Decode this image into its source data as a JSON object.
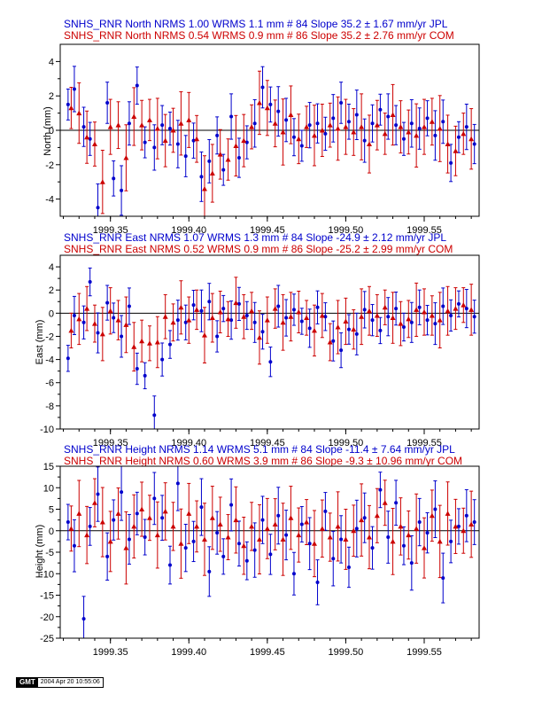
{
  "colors": {
    "jpl": "#0000cc",
    "com": "#cc0000",
    "frame": "#000000"
  },
  "stamp": {
    "logo": "GMT",
    "date": "2004 Apr 20 10:55:06"
  },
  "chart_data": [
    {
      "type": "scatter",
      "title": "",
      "xlabel": "",
      "ylabel": "North (mm)",
      "xlim": [
        1999.318,
        1999.585
      ],
      "ylim": [
        -5,
        5
      ],
      "xticks": [
        "1999.35",
        "1999.40",
        "1999.45",
        "1999.50",
        "1999.55"
      ],
      "xtick_values": [
        1999.35,
        1999.4,
        1999.45,
        1999.5,
        1999.55
      ],
      "yticks": [
        -4,
        -2,
        0,
        2,
        4
      ],
      "grid": false,
      "zero_line": true,
      "header": [
        "SNHS_RNR North NRMS 1.00 WRMS  1.1 mm # 84 Slope   35.2 ±  1.67 mm/yr JPL",
        "SNHS_RNR North NRMS 0.54 WRMS  0.9 mm # 86 Slope   35.2 ±  2.76 mm/yr COM"
      ],
      "series": [
        {
          "name": "JPL",
          "marker": "circle",
          "color": "#0000cc",
          "sigma": 1.2,
          "x": [
            1999.323,
            1999.327,
            1999.333,
            1999.337,
            1999.342,
            1999.348,
            1999.352,
            1999.357,
            1999.362,
            1999.367,
            1999.372,
            1999.378,
            1999.383,
            1999.388,
            1999.393,
            1999.398,
            1999.403,
            1999.408,
            1999.413,
            1999.418,
            1999.422,
            1999.427,
            1999.432,
            1999.437,
            1999.442,
            1999.447,
            1999.452,
            1999.457,
            1999.462,
            1999.467,
            1999.472,
            1999.477,
            1999.482,
            1999.487,
            1999.492,
            1999.497,
            1999.502,
            1999.507,
            1999.512,
            1999.517,
            1999.522,
            1999.527,
            1999.532,
            1999.537,
            1999.542,
            1999.547,
            1999.552,
            1999.557,
            1999.562,
            1999.567,
            1999.572,
            1999.577,
            1999.582
          ],
          "y": [
            1.5,
            2.4,
            0.2,
            -0.5,
            -4.5,
            1.6,
            -2.8,
            -3.5,
            0.4,
            2.6,
            -0.7,
            -1.0,
            0.3,
            0.1,
            -0.8,
            -1.5,
            -0.6,
            -2.7,
            -1.8,
            -0.3,
            -2.3,
            0.8,
            -1.6,
            -0.7,
            0.4,
            2.5,
            1.5,
            1.1,
            0.6,
            -0.4,
            -0.9,
            0.3,
            0.4,
            -0.2,
            0.7,
            1.6,
            0.5,
            0.9,
            -0.6,
            0.4,
            1.2,
            0.8,
            0.3,
            -0.5,
            0.4,
            0.1,
            0.7,
            -0.3,
            0.5,
            -1.9,
            -0.4,
            0.2,
            -0.8
          ]
        },
        {
          "name": "COM",
          "marker": "triangle",
          "color": "#cc0000",
          "sigma": 1.6,
          "x": [
            1999.325,
            1999.33,
            1999.335,
            1999.34,
            1999.345,
            1999.35,
            1999.355,
            1999.36,
            1999.365,
            1999.37,
            1999.375,
            1999.38,
            1999.385,
            1999.39,
            1999.395,
            1999.4,
            1999.405,
            1999.41,
            1999.415,
            1999.42,
            1999.425,
            1999.43,
            1999.435,
            1999.44,
            1999.445,
            1999.45,
            1999.455,
            1999.46,
            1999.465,
            1999.47,
            1999.475,
            1999.48,
            1999.485,
            1999.49,
            1999.495,
            1999.5,
            1999.505,
            1999.51,
            1999.515,
            1999.52,
            1999.525,
            1999.53,
            1999.535,
            1999.54,
            1999.545,
            1999.55,
            1999.555,
            1999.56,
            1999.565,
            1999.57,
            1999.575,
            1999.58
          ],
          "y": [
            1.3,
            1.0,
            -0.4,
            -0.8,
            -3.0,
            0.2,
            0.3,
            -1.6,
            0.8,
            0.3,
            0.6,
            0.1,
            -0.6,
            0.0,
            0.4,
            0.6,
            -0.5,
            -3.4,
            -2.5,
            -1.4,
            -1.7,
            -0.9,
            -0.6,
            0.2,
            1.6,
            1.3,
            0.4,
            -0.1,
            0.9,
            -0.5,
            0.2,
            -0.3,
            0.0,
            0.3,
            0.1,
            0.2,
            -0.1,
            0.2,
            -0.8,
            0.3,
            -0.2,
            0.9,
            0.2,
            -0.1,
            -0.3,
            0.2,
            0.5,
            0.1,
            -0.8,
            -1.2,
            -0.2,
            -0.5
          ]
        }
      ]
    },
    {
      "type": "scatter",
      "title": "",
      "xlabel": "",
      "ylabel": "East (mm)",
      "xlim": [
        1999.318,
        1999.585
      ],
      "ylim": [
        -10,
        5
      ],
      "xticks": [
        "1999.35",
        "1999.40",
        "1999.45",
        "1999.50",
        "1999.55"
      ],
      "xtick_values": [
        1999.35,
        1999.4,
        1999.45,
        1999.5,
        1999.55
      ],
      "yticks": [
        -10,
        -8,
        -6,
        -4,
        -2,
        0,
        2,
        4
      ],
      "grid": false,
      "zero_line": true,
      "header": [
        "SNHS_RNR East NRMS 1.07 WRMS  1.3 mm # 84 Slope  -24.9 ±  2.12 mm/yr JPL",
        "SNHS_RNR East NRMS 0.52 WRMS  0.9 mm # 86 Slope  -25.2 ±  2.99 mm/yr COM"
      ],
      "series": [
        {
          "name": "JPL",
          "marker": "circle",
          "color": "#0000cc",
          "sigma": 1.5,
          "x": [
            1999.323,
            1999.327,
            1999.333,
            1999.337,
            1999.342,
            1999.348,
            1999.352,
            1999.357,
            1999.362,
            1999.367,
            1999.372,
            1999.378,
            1999.383,
            1999.388,
            1999.393,
            1999.398,
            1999.403,
            1999.408,
            1999.413,
            1999.418,
            1999.422,
            1999.427,
            1999.432,
            1999.437,
            1999.442,
            1999.447,
            1999.452,
            1999.457,
            1999.462,
            1999.467,
            1999.472,
            1999.477,
            1999.482,
            1999.487,
            1999.492,
            1999.497,
            1999.502,
            1999.507,
            1999.512,
            1999.517,
            1999.522,
            1999.527,
            1999.532,
            1999.537,
            1999.542,
            1999.547,
            1999.552,
            1999.557,
            1999.562,
            1999.567,
            1999.572,
            1999.577,
            1999.582
          ],
          "y": [
            -3.9,
            -0.2,
            -0.8,
            2.7,
            -1.7,
            0.9,
            -0.4,
            -2.0,
            0.6,
            -4.8,
            -5.4,
            -8.8,
            -4.0,
            -2.7,
            -0.6,
            -0.8,
            0.7,
            0.2,
            1.0,
            -2.0,
            0.4,
            -0.6,
            0.8,
            -0.2,
            -0.8,
            -1.6,
            -4.2,
            0.6,
            -0.4,
            0.3,
            -0.7,
            -1.3,
            0.5,
            -0.3,
            -2.4,
            -3.2,
            -1.4,
            -1.8,
            0.3,
            -0.6,
            -1.5,
            -0.3,
            0.4,
            -1.2,
            -0.8,
            0.5,
            -0.6,
            -0.9,
            0.6,
            -0.2,
            0.8,
            0.4,
            -0.3
          ]
        },
        {
          "name": "COM",
          "marker": "triangle",
          "color": "#cc0000",
          "sigma": 2.0,
          "x": [
            1999.325,
            1999.33,
            1999.335,
            1999.34,
            1999.345,
            1999.35,
            1999.355,
            1999.36,
            1999.365,
            1999.37,
            1999.375,
            1999.38,
            1999.385,
            1999.39,
            1999.395,
            1999.4,
            1999.405,
            1999.41,
            1999.415,
            1999.42,
            1999.425,
            1999.43,
            1999.435,
            1999.44,
            1999.445,
            1999.45,
            1999.455,
            1999.46,
            1999.465,
            1999.47,
            1999.475,
            1999.48,
            1999.485,
            1999.49,
            1999.495,
            1999.5,
            1999.505,
            1999.51,
            1999.515,
            1999.52,
            1999.525,
            1999.53,
            1999.535,
            1999.54,
            1999.545,
            1999.55,
            1999.555,
            1999.56,
            1999.565,
            1999.57,
            1999.575,
            1999.58
          ],
          "y": [
            -1.5,
            -0.5,
            0.4,
            -0.9,
            -1.8,
            0.2,
            -0.6,
            -1.0,
            -2.9,
            -2.4,
            -2.6,
            -2.5,
            -0.3,
            -0.8,
            0.5,
            -0.6,
            0.3,
            -1.9,
            -0.4,
            0.1,
            -0.5,
            0.9,
            -0.3,
            0.2,
            -2.1,
            -0.6,
            0.4,
            -0.8,
            -0.3,
            0.1,
            -0.4,
            -1.5,
            -0.2,
            -2.5,
            -1.2,
            -0.7,
            -1.4,
            -0.3,
            0.2,
            -0.2,
            0.5,
            -0.4,
            -0.9,
            -0.5,
            0.3,
            0.1,
            -0.2,
            -0.6,
            0.2,
            0.4,
            0.7,
            0.3
          ]
        }
      ]
    },
    {
      "type": "scatter",
      "title": "",
      "xlabel": "",
      "ylabel": "Height (mm)",
      "xlim": [
        1999.318,
        1999.585
      ],
      "ylim": [
        -25,
        15
      ],
      "xticks": [
        "1999.35",
        "1999.40",
        "1999.45",
        "1999.50",
        "1999.55"
      ],
      "xtick_values": [
        1999.35,
        1999.4,
        1999.45,
        1999.5,
        1999.55
      ],
      "yticks": [
        -25,
        -20,
        -15,
        -10,
        -5,
        0,
        5,
        10,
        15
      ],
      "grid": false,
      "zero_line": true,
      "header": [
        "SNHS_RNR Height NRMS 1.14 WRMS  5.1 mm # 84 Slope  -11.4 ±  7.64 mm/yr JPL",
        "SNHS_RNR Height NRMS 0.60 WRMS  3.9 mm # 86 Slope   -9.3 ± 10.96 mm/yr COM"
      ],
      "series": [
        {
          "name": "JPL",
          "marker": "circle",
          "color": "#0000cc",
          "sigma": 5.5,
          "x": [
            1999.323,
            1999.327,
            1999.333,
            1999.337,
            1999.342,
            1999.348,
            1999.352,
            1999.357,
            1999.362,
            1999.367,
            1999.372,
            1999.378,
            1999.383,
            1999.388,
            1999.393,
            1999.398,
            1999.403,
            1999.408,
            1999.413,
            1999.418,
            1999.422,
            1999.427,
            1999.432,
            1999.437,
            1999.442,
            1999.447,
            1999.452,
            1999.457,
            1999.462,
            1999.467,
            1999.472,
            1999.477,
            1999.482,
            1999.487,
            1999.492,
            1999.497,
            1999.502,
            1999.507,
            1999.512,
            1999.517,
            1999.522,
            1999.527,
            1999.532,
            1999.537,
            1999.542,
            1999.547,
            1999.552,
            1999.557,
            1999.562,
            1999.567,
            1999.572,
            1999.577,
            1999.582
          ],
          "y": [
            2.0,
            -3.5,
            -20.5,
            1.0,
            8.5,
            -6.0,
            2.5,
            9.0,
            -2.0,
            4.0,
            -1.5,
            7.5,
            3.0,
            -8.0,
            11.0,
            -4.0,
            -2.5,
            5.5,
            -9.5,
            -0.5,
            -6.0,
            6.0,
            -3.0,
            -7.0,
            -4.5,
            2.5,
            -5.5,
            3.5,
            -1.0,
            -10.0,
            1.5,
            -3.0,
            -12.0,
            4.5,
            -6.5,
            -2.0,
            -8.5,
            0.5,
            3.0,
            -4.0,
            9.5,
            -1.5,
            6.5,
            -3.5,
            -7.5,
            2.0,
            -0.5,
            5.0,
            -11.0,
            -2.5,
            1.0,
            3.5,
            2.0
          ]
        },
        {
          "name": "COM",
          "marker": "triangle",
          "color": "#cc0000",
          "sigma": 7.0,
          "x": [
            1999.325,
            1999.33,
            1999.335,
            1999.34,
            1999.345,
            1999.35,
            1999.355,
            1999.36,
            1999.365,
            1999.37,
            1999.375,
            1999.38,
            1999.385,
            1999.39,
            1999.395,
            1999.4,
            1999.405,
            1999.41,
            1999.415,
            1999.42,
            1999.425,
            1999.43,
            1999.435,
            1999.44,
            1999.445,
            1999.45,
            1999.455,
            1999.46,
            1999.465,
            1999.47,
            1999.475,
            1999.48,
            1999.485,
            1999.49,
            1999.495,
            1999.5,
            1999.505,
            1999.51,
            1999.515,
            1999.52,
            1999.525,
            1999.53,
            1999.535,
            1999.54,
            1999.545,
            1999.55,
            1999.555,
            1999.56,
            1999.565,
            1999.57,
            1999.575,
            1999.58
          ],
          "y": [
            0.5,
            4.0,
            -1.0,
            6.5,
            2.0,
            -2.5,
            4.0,
            -4.0,
            1.0,
            5.0,
            3.0,
            -1.0,
            4.5,
            1.0,
            -3.0,
            4.0,
            1.0,
            -2.0,
            3.0,
            1.5,
            -1.5,
            2.5,
            -3.5,
            1.0,
            -2.0,
            0.5,
            1.5,
            -2.0,
            3.0,
            -1.0,
            2.0,
            -3.0,
            0.5,
            -1.5,
            1.0,
            -2.0,
            0.0,
            2.5,
            -1.5,
            3.5,
            6.5,
            -2.5,
            1.0,
            -1.0,
            0.5,
            -4.0,
            3.5,
            -2.5,
            4.0,
            1.0,
            0.0,
            1.5
          ]
        }
      ]
    }
  ]
}
